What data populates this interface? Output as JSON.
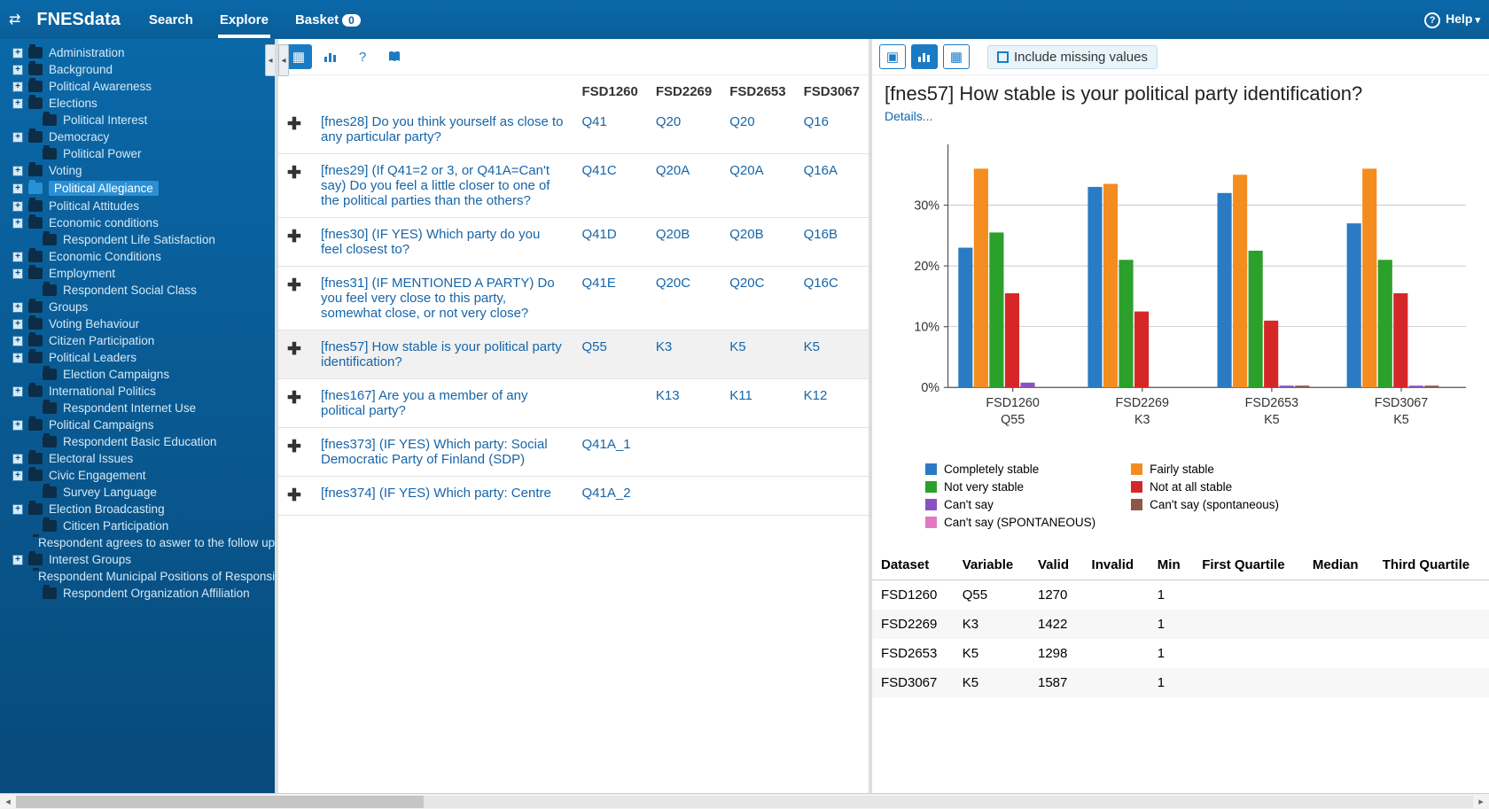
{
  "topbar": {
    "brand": "FNESdata",
    "nav": [
      {
        "label": "Search",
        "active": false
      },
      {
        "label": "Explore",
        "active": true
      },
      {
        "label": "Basket",
        "active": false,
        "count": 0
      }
    ],
    "help_label": "Help"
  },
  "sidebar": {
    "items": [
      {
        "label": "Administration",
        "expandable": true
      },
      {
        "label": "Background",
        "expandable": true
      },
      {
        "label": "Political Awareness",
        "expandable": true
      },
      {
        "label": "Elections",
        "expandable": true
      },
      {
        "label": "Political Interest",
        "expandable": false,
        "indent": true
      },
      {
        "label": "Democracy",
        "expandable": true
      },
      {
        "label": "Political Power",
        "expandable": false,
        "indent": true
      },
      {
        "label": "Voting",
        "expandable": true
      },
      {
        "label": "Political Allegiance",
        "expandable": true,
        "selected": true
      },
      {
        "label": "Political Attitudes",
        "expandable": true
      },
      {
        "label": "Economic conditions",
        "expandable": true
      },
      {
        "label": "Respondent Life Satisfaction",
        "expandable": false,
        "indent": true
      },
      {
        "label": "Economic Conditions",
        "expandable": true
      },
      {
        "label": "Employment",
        "expandable": true
      },
      {
        "label": "Respondent Social Class",
        "expandable": false,
        "indent": true
      },
      {
        "label": "Groups",
        "expandable": true
      },
      {
        "label": "Voting Behaviour",
        "expandable": true
      },
      {
        "label": "Citizen Participation",
        "expandable": true
      },
      {
        "label": "Political Leaders",
        "expandable": true
      },
      {
        "label": "Election Campaigns",
        "expandable": false,
        "indent": true
      },
      {
        "label": "International Politics",
        "expandable": true
      },
      {
        "label": "Respondent Internet Use",
        "expandable": false,
        "indent": true
      },
      {
        "label": "Political Campaigns",
        "expandable": true
      },
      {
        "label": "Respondent Basic Education",
        "expandable": false,
        "indent": true
      },
      {
        "label": "Electoral Issues",
        "expandable": true
      },
      {
        "label": "Civic Engagement",
        "expandable": true
      },
      {
        "label": "Survey Language",
        "expandable": false,
        "indent": true
      },
      {
        "label": "Election Broadcasting",
        "expandable": true
      },
      {
        "label": "Citicen Participation",
        "expandable": false,
        "indent": true
      },
      {
        "label": "Respondent agrees to aswer to the follow up qu",
        "expandable": false,
        "indent": true
      },
      {
        "label": "Interest Groups",
        "expandable": true
      },
      {
        "label": "Respondent Municipal Positions of Responsibili",
        "expandable": false,
        "indent": true
      },
      {
        "label": "Respondent Organization Affiliation",
        "expandable": false,
        "indent": true
      }
    ]
  },
  "center": {
    "columns": [
      "",
      "",
      "FSD1260",
      "FSD2269",
      "FSD2653",
      "FSD3067"
    ],
    "rows": [
      {
        "desc": "[fnes28] Do you think yourself as close to any particular party?",
        "cells": [
          "Q41",
          "Q20",
          "Q20",
          "Q16"
        ]
      },
      {
        "desc": "[fnes29] (If Q41=2 or 3, or Q41A=Can't say) Do you feel a little closer to one of the political parties than the others?",
        "cells": [
          "Q41C",
          "Q20A",
          "Q20A",
          "Q16A"
        ]
      },
      {
        "desc": "[fnes30] (IF YES) Which party do you feel closest to?",
        "cells": [
          "Q41D",
          "Q20B",
          "Q20B",
          "Q16B"
        ]
      },
      {
        "desc": "[fnes31] (IF MENTIONED A PARTY) Do you feel very close to this party, somewhat close, or not very close?",
        "cells": [
          "Q41E",
          "Q20C",
          "Q20C",
          "Q16C"
        ]
      },
      {
        "desc": "[fnes57] How stable is your political party identification?",
        "cells": [
          "Q55",
          "K3",
          "K5",
          "K5"
        ],
        "selected": true
      },
      {
        "desc": "[fnes167] Are you a member of any political party?",
        "cells": [
          "",
          "K13",
          "K11",
          "K12"
        ]
      },
      {
        "desc": "[fnes373] (IF YES) Which party: Social Democratic Party of Finland (SDP)",
        "cells": [
          "Q41A_1",
          "",
          "",
          ""
        ]
      },
      {
        "desc": "[fnes374] (IF YES) Which party: Centre",
        "cells": [
          "Q41A_2",
          "",
          "",
          ""
        ]
      }
    ]
  },
  "right": {
    "title": "[fnes57] How stable is your political party identification?",
    "details_label": "Details...",
    "missing_label": "Include missing values",
    "chart": {
      "type": "grouped-bar",
      "y_ticks": [
        0,
        10,
        20,
        30
      ],
      "y_tick_labels": [
        "0%",
        "10%",
        "20%",
        "30%"
      ],
      "ylim": [
        0,
        40
      ],
      "background": "#ffffff",
      "grid_color": "#b8b8b8",
      "axis_color": "#555555",
      "label_fontsize": 12,
      "bar_width": 0.12,
      "groups": [
        {
          "label_top": "FSD1260",
          "label_bot": "Q55"
        },
        {
          "label_top": "FSD2269",
          "label_bot": "K3"
        },
        {
          "label_top": "FSD2653",
          "label_bot": "K5"
        },
        {
          "label_top": "FSD3067",
          "label_bot": "K5"
        }
      ],
      "series": [
        {
          "name": "Completely stable",
          "color": "#2a7bc4",
          "values": [
            23,
            33,
            32,
            27
          ]
        },
        {
          "name": "Fairly stable",
          "color": "#f58c1f",
          "values": [
            36,
            33.5,
            35,
            36
          ]
        },
        {
          "name": "Not very stable",
          "color": "#2ba02b",
          "values": [
            25.5,
            21,
            22.5,
            21
          ]
        },
        {
          "name": "Not at all stable",
          "color": "#d62728",
          "values": [
            15.5,
            12.5,
            11,
            15.5
          ]
        },
        {
          "name": "Can't say",
          "color": "#8a51c4",
          "values": [
            0.8,
            0,
            0.3,
            0.3
          ]
        },
        {
          "name": "Can't say (spontaneous)",
          "color": "#8c564b",
          "values": [
            0,
            0,
            0.3,
            0.3
          ]
        },
        {
          "name": "Can't say (SPONTANEOUS)",
          "color": "#e377c2",
          "values": [
            0,
            0,
            0,
            0
          ]
        }
      ]
    },
    "legend_layout": [
      [
        "Completely stable",
        "Not very stable",
        "Can't say",
        "Can't say (SPONTANEOUS)"
      ],
      [
        "Fairly stable",
        "Not at all stable",
        "Can't say (spontaneous)"
      ]
    ],
    "stats": {
      "columns": [
        "Dataset",
        "Variable",
        "Valid",
        "Invalid",
        "Min",
        "First Quartile",
        "Median",
        "Third Quartile"
      ],
      "rows": [
        [
          "FSD1260",
          "Q55",
          "1270",
          "",
          "1",
          "",
          "",
          ""
        ],
        [
          "FSD2269",
          "K3",
          "1422",
          "",
          "1",
          "",
          "",
          ""
        ],
        [
          "FSD2653",
          "K5",
          "1298",
          "",
          "1",
          "",
          "",
          ""
        ],
        [
          "FSD3067",
          "K5",
          "1587",
          "",
          "1",
          "",
          "",
          ""
        ]
      ]
    }
  }
}
